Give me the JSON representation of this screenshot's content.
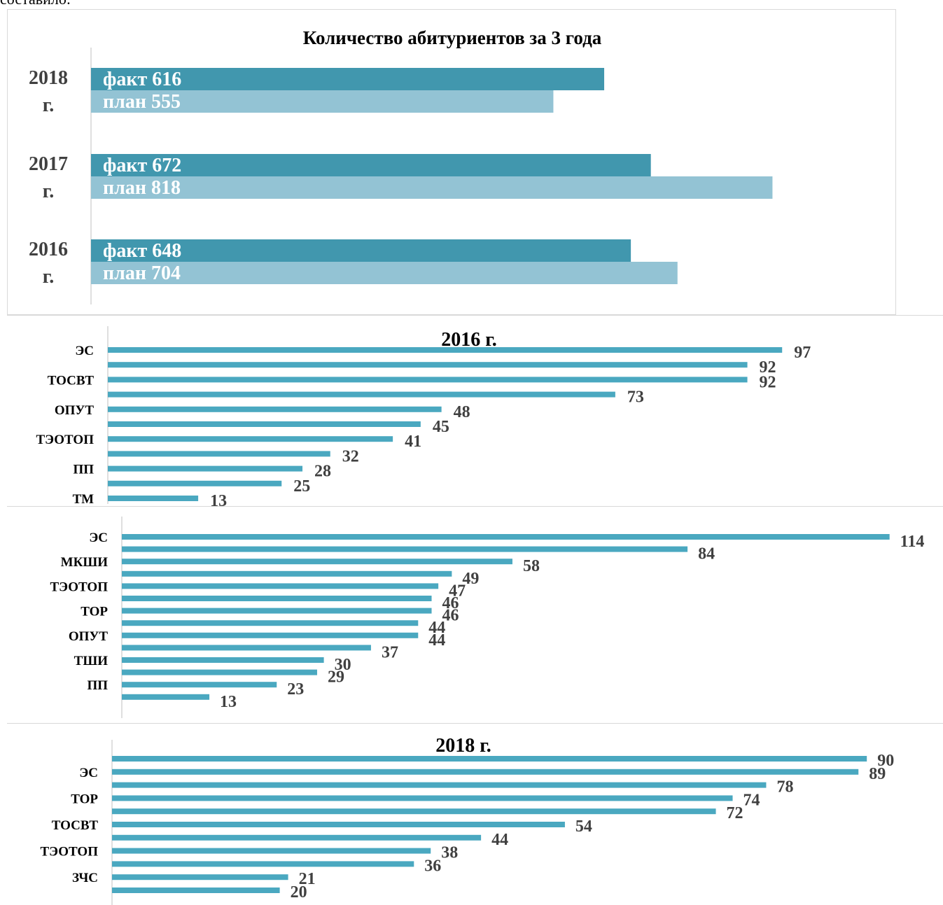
{
  "intro_text": "составило:",
  "colors": {
    "fact": "#4197ae",
    "plan": "#93c3d4",
    "bar": "#4aa8c0",
    "axis": "#bfbfbf",
    "label": "#404040"
  },
  "chart_data": [
    {
      "type": "bar",
      "orientation": "horizontal",
      "title": "Количество абитуриентов за 3 года",
      "categories": [
        "2018 г.",
        "2017 г.",
        "2016 г."
      ],
      "series": [
        {
          "name": "факт",
          "values": [
            616,
            672,
            648
          ]
        },
        {
          "name": "план",
          "values": [
            555,
            818,
            704
          ]
        }
      ],
      "xlim": [
        0,
        1000
      ],
      "grid": false
    },
    {
      "type": "bar",
      "orientation": "horizontal",
      "title": "2016 г.",
      "tick_labels": [
        "ЭС",
        "ТОСВТ",
        "ОПУТ",
        "ТЭОТОП",
        "ПП",
        "ТМ"
      ],
      "values": [
        97,
        92,
        92,
        73,
        48,
        45,
        41,
        32,
        28,
        25,
        13
      ],
      "xlim": [
        0,
        100
      ],
      "grid": false
    },
    {
      "type": "bar",
      "orientation": "horizontal",
      "title": "",
      "tick_labels": [
        "ЭС",
        "МКШИ",
        "ТЭОТОП",
        "ТОР",
        "ОПУТ",
        "ТШИ",
        "ПП"
      ],
      "values": [
        114,
        84,
        58,
        49,
        47,
        46,
        46,
        44,
        44,
        37,
        30,
        29,
        23,
        13
      ],
      "xlim": [
        0,
        114
      ],
      "grid": false
    },
    {
      "type": "bar",
      "orientation": "horizontal",
      "title": "2018 г.",
      "tick_labels": [
        "ЭС",
        "ТОР",
        "ТОСВТ",
        "ТЭОТОП",
        "ЗЧС"
      ],
      "values": [
        90,
        89,
        78,
        74,
        72,
        54,
        44,
        38,
        36,
        21,
        20
      ],
      "xlim": [
        0,
        90
      ],
      "grid": false
    }
  ]
}
